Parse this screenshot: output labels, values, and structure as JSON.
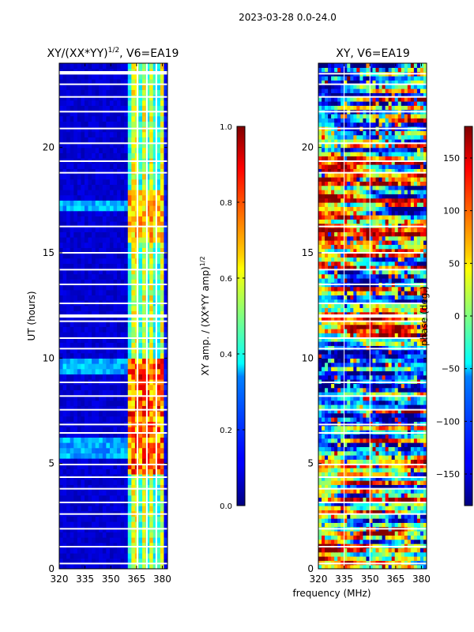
{
  "suptitle": "2023-03-28 0.0-24.0",
  "shared_xlabel": "frequency (MHz)",
  "chart_data": [
    {
      "type": "heatmap",
      "title": "XY/(XX*YY)",
      "title_sup": "1/2",
      "title_suffix": ", V6=EA19",
      "xlabel": "",
      "ylabel": "UT (hours)",
      "xlim": [
        320,
        383
      ],
      "ylim": [
        0,
        24
      ],
      "xticks": [
        "320",
        "335",
        "350",
        "365",
        "380"
      ],
      "yticks": [
        "0",
        "5",
        "10",
        "15",
        "20"
      ],
      "colorbar": {
        "label": "XY amp. / (XX*YY amp)",
        "label_sup": "1/2",
        "range": [
          0.0,
          1.0
        ],
        "ticks": [
          "0.0",
          "0.2",
          "0.4",
          "0.6",
          "0.8",
          "1.0"
        ]
      },
      "colormap": "jet"
    },
    {
      "type": "heatmap",
      "title": "XY, V6=EA19",
      "xlabel": "frequency (MHz)",
      "ylabel": "",
      "xlim": [
        320,
        383
      ],
      "ylim": [
        0,
        24
      ],
      "xticks": [
        "320",
        "335",
        "350",
        "365",
        "380"
      ],
      "yticks": [
        "0",
        "5",
        "10",
        "15",
        "20"
      ],
      "colorbar": {
        "label": "phase (deg.)",
        "range": [
          -180,
          180
        ],
        "ticks": [
          "−150",
          "−100",
          "−50",
          "0",
          "50",
          "100",
          "150"
        ]
      },
      "colormap": "jet"
    }
  ]
}
